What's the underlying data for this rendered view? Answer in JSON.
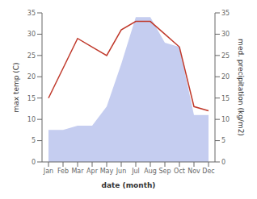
{
  "chart_data": {
    "type": "line",
    "xlabel": "date (month)",
    "ylabel": "max temp (C)",
    "y2label": "med. precipitation (kg/m2)",
    "categories": [
      "Jan",
      "Feb",
      "Mar",
      "Apr",
      "May",
      "Jun",
      "Jul",
      "Aug",
      "Sep",
      "Oct",
      "Nov",
      "Dec"
    ],
    "series": [
      {
        "type": "area",
        "axis": "y2",
        "color": "#c5cdf0",
        "values": [
          7.5,
          7.5,
          8.5,
          8.5,
          13,
          23,
          34,
          34,
          28,
          27,
          11,
          11
        ]
      },
      {
        "type": "line",
        "color": "#c0392b",
        "values": [
          15,
          22,
          29,
          27,
          25,
          31,
          33,
          33,
          30,
          27,
          13,
          12
        ]
      }
    ],
    "ylim": [
      0,
      35
    ],
    "yticks": [
      0,
      5,
      10,
      15,
      20,
      25,
      30,
      35
    ],
    "y2lim": [
      0,
      35
    ],
    "y2ticks": [
      0,
      5,
      10,
      15,
      20,
      25,
      30,
      35
    ],
    "grid": false
  }
}
